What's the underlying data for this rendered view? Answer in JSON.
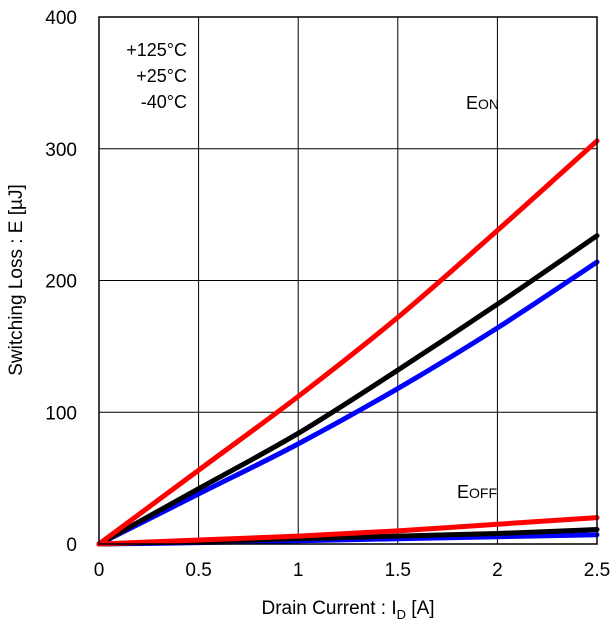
{
  "chart_data": {
    "type": "line",
    "xlabel": {
      "main": "Drain Current : I",
      "sub": "D",
      "unit": " [A]"
    },
    "ylabel": "Switching Loss : E [µJ]",
    "xlim": [
      0,
      2.5
    ],
    "ylim": [
      0,
      400
    ],
    "xticks": [
      "0",
      "0.5",
      "1",
      "1.5",
      "2",
      "2.5"
    ],
    "yticks": [
      "0",
      "100",
      "200",
      "300",
      "400"
    ],
    "grid": true,
    "legend_entries": [
      "+125°C",
      "+25°C",
      "-40°C"
    ],
    "annotations": {
      "eon": {
        "main": "E",
        "sub": "ON"
      },
      "eoff": {
        "main": "E",
        "sub": "OFF"
      }
    },
    "series": [
      {
        "group": "EON",
        "temp": "+125°C",
        "color": "#ff0000",
        "x": [
          0,
          0.5,
          1,
          1.5,
          2,
          2.5
        ],
        "y": [
          0,
          56,
          112,
          172,
          238,
          306
        ]
      },
      {
        "group": "EON",
        "temp": "+25°C",
        "color": "#000000",
        "x": [
          0,
          0.5,
          1,
          1.5,
          2,
          2.5
        ],
        "y": [
          0,
          42,
          84,
          132,
          182,
          234
        ]
      },
      {
        "group": "EON",
        "temp": "-40°C",
        "color": "#0000ff",
        "x": [
          0,
          0.5,
          1,
          1.5,
          2,
          2.5
        ],
        "y": [
          0,
          38,
          76,
          118,
          164,
          214
        ]
      },
      {
        "group": "EOFF",
        "temp": "+125°C",
        "color": "#ff0000",
        "x": [
          0,
          0.5,
          1,
          1.5,
          2,
          2.5
        ],
        "y": [
          0,
          3,
          6,
          10,
          15,
          20
        ]
      },
      {
        "group": "EOFF",
        "temp": "+25°C",
        "color": "#000000",
        "x": [
          0,
          0.5,
          1,
          1.5,
          2,
          2.5
        ],
        "y": [
          0,
          2,
          4,
          6,
          8,
          11
        ]
      },
      {
        "group": "EOFF",
        "temp": "-40°C",
        "color": "#0000ff",
        "x": [
          0,
          0.5,
          1,
          1.5,
          2,
          2.5
        ],
        "y": [
          0,
          1,
          2.5,
          4,
          5.5,
          7
        ]
      }
    ]
  }
}
